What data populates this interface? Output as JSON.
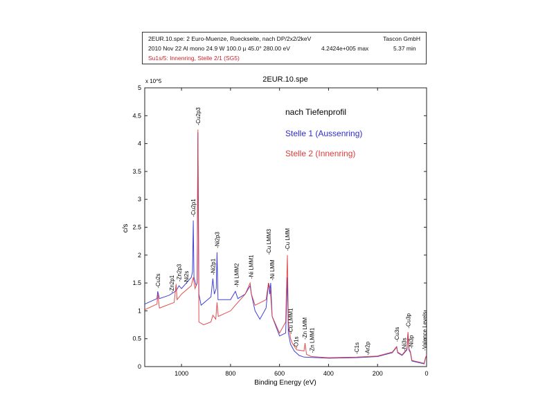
{
  "header": {
    "line1_left": "2EUR.10.spe: 2 Euro-Muenze, Rueckseite, nach DP/2x2/2keV",
    "line1_right": "Tascon GmbH",
    "line2_left": "2010 Nov 22  Al mono  24.9 W  100.0 µ  45.0°  280.00 eV",
    "line2_mid": "4.2424e+005 max",
    "line2_right": "5.37 min",
    "line3": "Su1s/5: Innenring, Stelle 2/1 (SG5)",
    "line3_color": "#d0202a"
  },
  "chart_data": {
    "type": "line",
    "title": "2EUR.10.spe",
    "xlabel": "Binding Energy (eV)",
    "ylabel": "c/s",
    "y_multiplier": "x 10^5",
    "xlim": [
      1150,
      0
    ],
    "ylim": [
      0,
      5
    ],
    "x_reversed": true,
    "xticks": [
      1000,
      800,
      600,
      400,
      200,
      0
    ],
    "yticks": [
      0,
      0.5,
      1,
      1.5,
      2,
      2.5,
      3,
      3.5,
      4,
      4.5,
      5
    ],
    "grid": false,
    "legend_title": "nach Tiefenprofil",
    "legend_placement": "top-right",
    "series": [
      {
        "name": "Stelle 1 (Aussenring)",
        "color": "#2b2bd0",
        "points": [
          [
            1150,
            1.12
          ],
          [
            1100,
            1.22
          ],
          [
            1097,
            1.35
          ],
          [
            1090,
            1.22
          ],
          [
            1050,
            1.28
          ],
          [
            1022,
            1.36
          ],
          [
            1010,
            1.45
          ],
          [
            1000,
            1.4
          ],
          [
            960,
            1.6
          ],
          [
            955,
            1.7
          ],
          [
            952,
            2.62
          ],
          [
            949,
            1.6
          ],
          [
            940,
            1.45
          ],
          [
            936,
            1.5
          ],
          [
            933,
            4.2
          ],
          [
            929,
            1.3
          ],
          [
            920,
            1.1
          ],
          [
            880,
            1.25
          ],
          [
            872,
            1.58
          ],
          [
            866,
            1.3
          ],
          [
            858,
            1.4
          ],
          [
            855,
            2.05
          ],
          [
            851,
            1.2
          ],
          [
            800,
            1.2
          ],
          [
            780,
            1.35
          ],
          [
            770,
            1.22
          ],
          [
            740,
            1.3
          ],
          [
            720,
            1.45
          ],
          [
            715,
            1.3
          ],
          [
            700,
            1.0
          ],
          [
            680,
            0.85
          ],
          [
            655,
            1.05
          ],
          [
            645,
            1.5
          ],
          [
            640,
            1.3
          ],
          [
            636,
            1.5
          ],
          [
            630,
            0.9
          ],
          [
            600,
            0.55
          ],
          [
            575,
            0.6
          ],
          [
            568,
            1.6
          ],
          [
            564,
            0.6
          ],
          [
            555,
            0.4
          ],
          [
            540,
            0.28
          ],
          [
            520,
            0.2
          ],
          [
            500,
            0.17
          ],
          [
            400,
            0.15
          ],
          [
            285,
            0.16
          ],
          [
            200,
            0.18
          ],
          [
            140,
            0.25
          ],
          [
            122,
            0.35
          ],
          [
            118,
            0.25
          ],
          [
            100,
            0.2
          ],
          [
            80,
            0.3
          ],
          [
            76,
            0.6
          ],
          [
            72,
            0.3
          ],
          [
            66,
            0.25
          ],
          [
            60,
            0.1
          ],
          [
            10,
            0.05
          ],
          [
            5,
            0.14
          ],
          [
            0,
            0.2
          ]
        ]
      },
      {
        "name": "Stelle 2 (Innenring)",
        "color": "#e03a3a",
        "points": [
          [
            1150,
            1.02
          ],
          [
            1100,
            1.12
          ],
          [
            1097,
            1.3
          ],
          [
            1090,
            1.05
          ],
          [
            1030,
            1.15
          ],
          [
            1022,
            1.48
          ],
          [
            1018,
            1.2
          ],
          [
            1000,
            1.3
          ],
          [
            960,
            1.45
          ],
          [
            952,
            1.6
          ],
          [
            945,
            1.4
          ],
          [
            936,
            1.5
          ],
          [
            933,
            4.25
          ],
          [
            929,
            0.8
          ],
          [
            910,
            0.75
          ],
          [
            880,
            0.8
          ],
          [
            872,
            0.92
          ],
          [
            860,
            0.85
          ],
          [
            855,
            1.15
          ],
          [
            850,
            0.9
          ],
          [
            800,
            1.0
          ],
          [
            780,
            1.1
          ],
          [
            740,
            1.3
          ],
          [
            720,
            1.5
          ],
          [
            715,
            1.3
          ],
          [
            700,
            1.1
          ],
          [
            655,
            1.2
          ],
          [
            645,
            1.5
          ],
          [
            638,
            1.4
          ],
          [
            630,
            0.9
          ],
          [
            600,
            0.6
          ],
          [
            575,
            0.8
          ],
          [
            568,
            2.0
          ],
          [
            564,
            0.8
          ],
          [
            555,
            0.5
          ],
          [
            548,
            0.42
          ],
          [
            530,
            0.3
          ],
          [
            500,
            0.28
          ],
          [
            496,
            0.42
          ],
          [
            490,
            0.22
          ],
          [
            470,
            0.18
          ],
          [
            400,
            0.16
          ],
          [
            285,
            0.17
          ],
          [
            200,
            0.19
          ],
          [
            140,
            0.26
          ],
          [
            122,
            0.36
          ],
          [
            118,
            0.26
          ],
          [
            100,
            0.21
          ],
          [
            80,
            0.32
          ],
          [
            76,
            0.62
          ],
          [
            72,
            0.32
          ],
          [
            66,
            0.27
          ],
          [
            60,
            0.11
          ],
          [
            10,
            0.06
          ],
          [
            5,
            0.15
          ],
          [
            0,
            0.21
          ]
        ]
      }
    ],
    "annotations": [
      {
        "label": "-Cu2s",
        "x": 1097,
        "y": 1.38
      },
      {
        "label": "-Zn2p1",
        "x": 1040,
        "y": 1.3
      },
      {
        "label": "-Zn2p3",
        "x": 1022,
        "y": 1.5
      },
      {
        "label": "-Ni2s",
        "x": 1008,
        "y": 1.46
      },
      {
        "label": "-Cu2p1",
        "x": 952,
        "y": 2.66
      },
      {
        "label": "-Cu2p3",
        "x": 933,
        "y": 4.3
      },
      {
        "label": "-Ni2p1",
        "x": 872,
        "y": 1.62
      },
      {
        "label": "-Ni2p3",
        "x": 855,
        "y": 2.1
      },
      {
        "label": "-Ni LMM2",
        "x": 775,
        "y": 1.4
      },
      {
        "label": "-Ni LMM1",
        "x": 716,
        "y": 1.55
      },
      {
        "label": "-Cu LMM3",
        "x": 644,
        "y": 1.98
      },
      {
        "label": "-Ni LMM",
        "x": 630,
        "y": 1.52
      },
      {
        "label": "-Cu LMM",
        "x": 568,
        "y": 2.05
      },
      {
        "label": "-Cu LMM1",
        "x": 555,
        "y": 0.56
      },
      {
        "label": "-O1s",
        "x": 532,
        "y": 0.3
      },
      {
        "label": "-Zn LMM",
        "x": 497,
        "y": 0.46
      },
      {
        "label": "-Zn LMM1",
        "x": 475,
        "y": 0.22
      },
      {
        "label": "-C1s",
        "x": 285,
        "y": 0.2
      },
      {
        "label": "-Ar2p",
        "x": 242,
        "y": 0.18
      },
      {
        "label": "-Cu3s",
        "x": 122,
        "y": 0.42
      },
      {
        "label": "-Ni3s",
        "x": 110,
        "y": 0.26
      },
      {
        "label": "-Cu3p",
        "x": 75,
        "y": 0.66
      },
      {
        "label": "-Ni3p",
        "x": 64,
        "y": 0.3
      },
      {
        "label": "-Valence Levels",
        "x": 8,
        "y": 0.26
      }
    ]
  }
}
